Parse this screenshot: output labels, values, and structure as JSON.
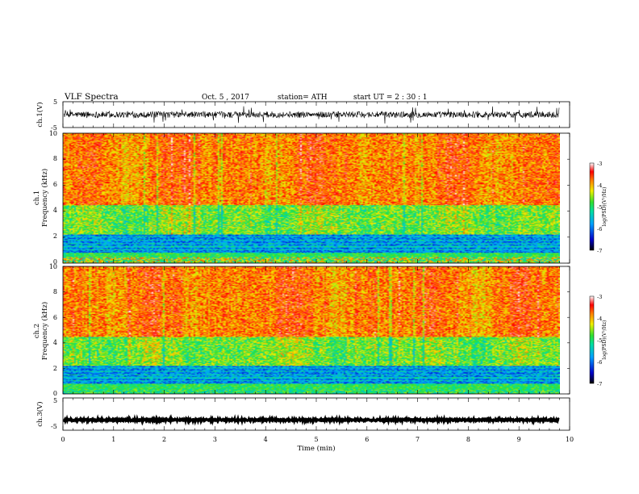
{
  "header": {
    "title": "VLF  Spectra",
    "date": "Oct. 5  , 2017",
    "station": "station= ATH",
    "start": "start  UT  =   2  : 30 : 1"
  },
  "chart_data": [
    {
      "type": "line",
      "name": "ch1-waveform",
      "ylabel": "ch.1(V)",
      "ylim": [
        -5,
        5
      ],
      "yticks": [
        "5",
        "-5"
      ],
      "xlim": [
        0,
        10
      ],
      "data_end_min": 9.8,
      "baseline": 0,
      "noise_amplitude": 1.2
    },
    {
      "type": "heatmap",
      "name": "ch1-spectrogram",
      "ylabel": "Frequency  (kHz)",
      "channel_label": "ch.1",
      "ylim": [
        0,
        10
      ],
      "yticks": [
        "0",
        "2",
        "4",
        "6",
        "8",
        "10"
      ],
      "xlim": [
        0,
        10
      ],
      "data_end_min": 9.8,
      "colorbar": {
        "label": "log(PSD)(V²/Hz)",
        "range": [
          -7,
          -3
        ],
        "ticks": [
          "-3",
          "-4",
          "-5",
          "-6",
          "-7"
        ]
      }
    },
    {
      "type": "heatmap",
      "name": "ch2-spectrogram",
      "ylabel": "Frequency  (kHz)",
      "channel_label": "ch.2",
      "ylim": [
        0,
        10
      ],
      "yticks": [
        "0",
        "2",
        "4",
        "6",
        "8",
        "10"
      ],
      "xlim": [
        0,
        10
      ],
      "data_end_min": 9.8,
      "colorbar": {
        "label": "log(PSD)(V²/Hz)",
        "range": [
          -7,
          -3
        ],
        "ticks": [
          "-3",
          "-4",
          "-5",
          "-6",
          "-7"
        ]
      }
    },
    {
      "type": "line",
      "name": "ch3-waveform",
      "ylabel": "ch.3(V)",
      "ylim": [
        -5,
        5
      ],
      "yticks": [
        "5",
        "-5"
      ],
      "xlim": [
        0,
        10
      ],
      "data_end_min": 9.8,
      "baseline": -1.8,
      "noise_amplitude": 0.3
    }
  ],
  "xaxis": {
    "label": "Time  (min)",
    "ticks": [
      "0",
      "1",
      "2",
      "3",
      "4",
      "5",
      "6",
      "7",
      "8",
      "9",
      "10"
    ]
  }
}
